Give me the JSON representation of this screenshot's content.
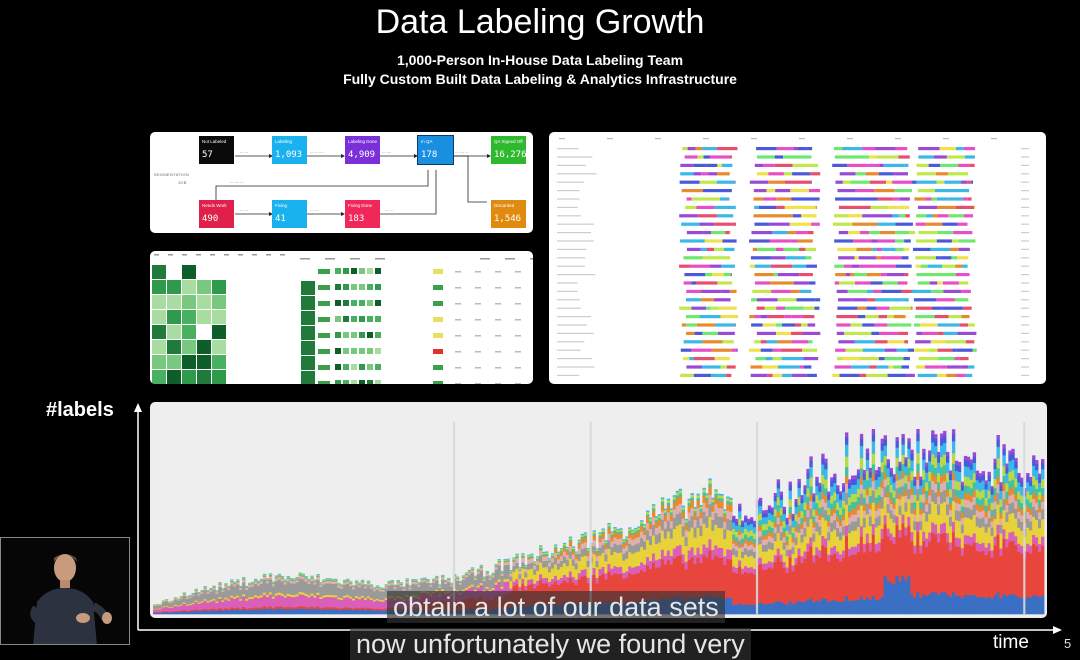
{
  "slide": {
    "title": "Data Labeling Growth",
    "subtitle_line1": "1,000-Person In-House Data Labeling Team",
    "subtitle_line2": "Fully Custom Built Data Labeling & Analytics Infrastructure",
    "y_axis_label": "#labels",
    "x_axis_label": "time",
    "page_number": "5"
  },
  "pipeline": {
    "side_label": "SEGMENTATION",
    "side_sub": "JOB",
    "nodes": [
      {
        "label": "Not Labeled",
        "value": "57",
        "color": "#0a0a0a"
      },
      {
        "label": "Labeling",
        "value": "1,093",
        "color": "#1ab2ee"
      },
      {
        "label": "Labeling Done",
        "value": "4,909",
        "color": "#7b2fd8"
      },
      {
        "label": "In QA",
        "value": "178",
        "color": "#1a8fe0"
      },
      {
        "label": "QA Signed Off",
        "value": "16,276",
        "color": "#2eb82e"
      },
      {
        "label": "Needs Work",
        "value": "490",
        "color": "#e0204a"
      },
      {
        "label": "Fixing",
        "value": "41",
        "color": "#1ab2ee"
      },
      {
        "label": "Fixing Done",
        "value": "183",
        "color": "#f0285a"
      },
      {
        "label": "Discarded",
        "value": "1,546",
        "color": "#e08a10"
      }
    ]
  },
  "chart_data": {
    "type": "area",
    "title": "",
    "xlabel": "time",
    "ylabel": "#labels",
    "x_unit": "time periods (unlabeled)",
    "series_colors": [
      "#3a6fc4",
      "#e8463c",
      "#d95fb8",
      "#e8d23a",
      "#9a9a9a",
      "#e0b0b0",
      "#e88a2e",
      "#45c0a0",
      "#b9d84a",
      "#3ab8e8",
      "#4a5ad8",
      "#9b4ad8"
    ],
    "total_envelope": [
      0.05,
      0.12,
      0.16,
      0.2,
      0.2,
      0.18,
      0.16,
      0.17,
      0.19,
      0.24,
      0.3,
      0.36,
      0.42,
      0.5,
      0.58,
      0.64,
      0.55,
      0.6,
      0.75,
      0.85,
      0.9,
      0.84,
      0.8,
      0.82,
      0.78
    ],
    "note_values": "relative heights, axis unlabeled"
  },
  "captions": {
    "line1": "obtain a lot of our data sets",
    "line2": "now unfortunately we found very"
  },
  "colors": {
    "background": "#000000",
    "panel": "#ffffff",
    "chart_bg": "#eeeeee"
  }
}
